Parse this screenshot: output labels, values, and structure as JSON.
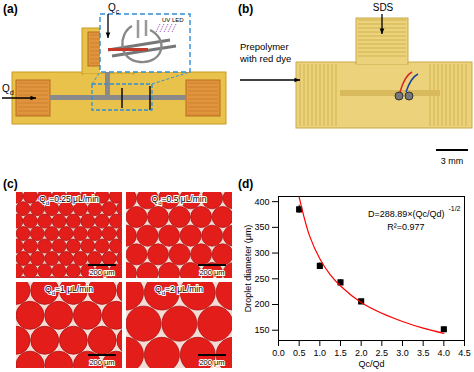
{
  "panels": {
    "a": {
      "label": "(a)",
      "inlets": [
        {
          "text": "Q",
          "subscript": "c"
        },
        {
          "text": "Q",
          "subscript": "d"
        }
      ],
      "inset_label": "UV LED"
    },
    "b": {
      "label": "(b)",
      "top_inlet": "SDS",
      "side_inlet": [
        "Prepolymer",
        "with red dye"
      ],
      "scale_bar": "3 mm"
    },
    "c": {
      "label": "(c)",
      "images": [
        {
          "prefix": "Q",
          "subscript": "d",
          "suffix": "=0.25 μL/min"
        },
        {
          "prefix": "Q",
          "subscript": "d",
          "suffix": "=0.5 μL/min"
        },
        {
          "prefix": "Q",
          "subscript": "d",
          "suffix": "=1 μL/min"
        },
        {
          "prefix": "Q",
          "subscript": "d",
          "suffix": "=2 μL/min"
        }
      ],
      "scale_bar": "200 μm"
    },
    "d": {
      "label": "(d)"
    }
  },
  "chart_data": {
    "type": "scatter",
    "x_label": "Qc/Qd",
    "y_label": "Droplet diameter (μm)",
    "annotations": [
      {
        "text": "D=288.89×(Qc/Qd)",
        "superscript": "-1/2"
      },
      {
        "text": "R²=0.977"
      }
    ],
    "series": [
      {
        "type": "scatter",
        "marker": "square",
        "color": "#000000",
        "x": [
          0.5,
          1,
          1.5,
          2,
          4
        ],
        "values": [
          385,
          275,
          243,
          206,
          152
        ],
        "errors": [
          8,
          6,
          5,
          4,
          4
        ]
      },
      {
        "type": "line",
        "line_style": "solid",
        "color": "#ff0000",
        "x": [
          0.5,
          0.75,
          1,
          1.25,
          1.5,
          2,
          2.5,
          3,
          3.5,
          4
        ],
        "values": [
          409,
          334,
          289,
          258,
          236,
          204,
          183,
          167,
          154,
          144
        ]
      }
    ],
    "xlim": [
      0,
      4.5
    ],
    "xticks": [
      {
        "value": 0,
        "label": "0.0"
      },
      {
        "value": 0.5,
        "label": "0.5"
      },
      {
        "value": 1,
        "label": "1.0"
      },
      {
        "value": 1.5,
        "label": "1.5"
      },
      {
        "value": 2,
        "label": "2.0"
      },
      {
        "value": 2.5,
        "label": "2.5"
      },
      {
        "value": 3,
        "label": "3.0"
      },
      {
        "value": 3.5,
        "label": "3.5"
      },
      {
        "value": 4,
        "label": "4.0"
      },
      {
        "value": 4.5,
        "label": "4.5"
      }
    ],
    "ylim": [
      130,
      410
    ],
    "yticks": [
      150,
      200,
      250,
      300,
      350,
      400
    ],
    "grid": false
  }
}
